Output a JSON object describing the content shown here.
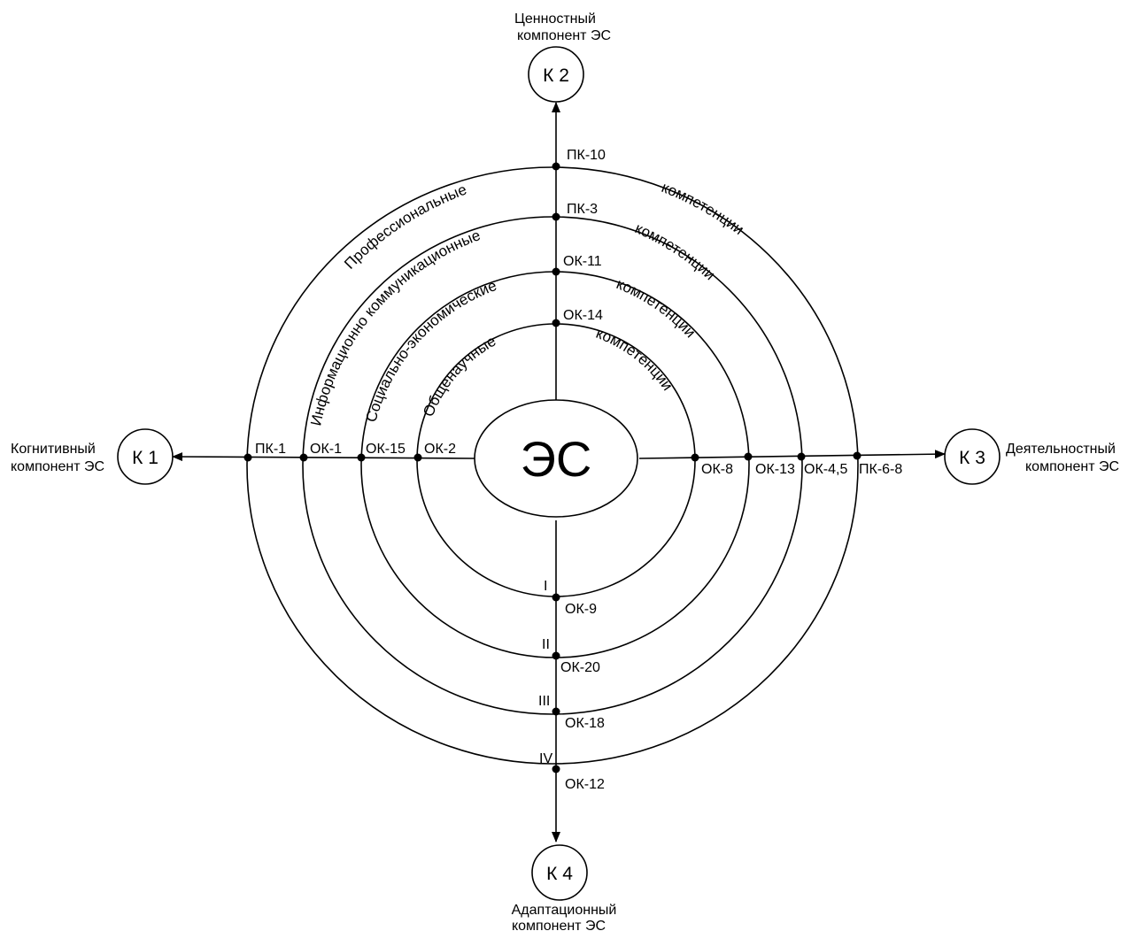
{
  "center": {
    "label": "ЭС"
  },
  "components": {
    "k1": {
      "label": "К 1",
      "caption_line1": "Когнитивный",
      "caption_line2": "компонент ЭС"
    },
    "k2": {
      "label": "К 2",
      "caption_line1": "Ценностный",
      "caption_line2": "компонент ЭС"
    },
    "k3": {
      "label": "К 3",
      "caption_line1": "Деятельностный",
      "caption_line2": "компонент ЭС"
    },
    "k4": {
      "label": "К 4",
      "caption_line1": "Адаптационный",
      "caption_line2": "компонент ЭС"
    }
  },
  "rings": [
    {
      "level": "I",
      "name": "Общенаучные",
      "suffix": "компетенции",
      "top": "ОК-14",
      "left": "ОК-2",
      "right": "ОК-8",
      "bottom": "ОК-9"
    },
    {
      "level": "II",
      "name": "Социально-экономические",
      "suffix": "компетенции",
      "top": "ОК-11",
      "left": "ОК-15",
      "right": "ОК-13",
      "bottom": "ОК-20"
    },
    {
      "level": "III",
      "name": "Информационно коммуникационные",
      "suffix": "компетенции",
      "top": "ПК-3",
      "left": "ОК-1",
      "right": "ОК-4,5",
      "bottom": "ОК-18"
    },
    {
      "level": "IV",
      "name": "Профессиональные",
      "suffix": "компетенции",
      "top": "ПК-10",
      "left": "ПК-1",
      "right": "ПК-6-8",
      "bottom": "ОК-12"
    }
  ]
}
